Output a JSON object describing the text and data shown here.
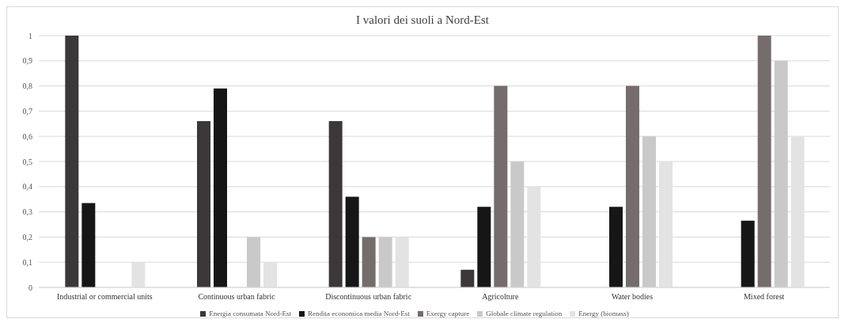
{
  "chart_data": {
    "type": "bar",
    "title": "I valori dei suoli a Nord-Est",
    "categories": [
      "Industrial or commercial units",
      "Continuous urban fabric",
      "Discontinuous urban fabric",
      "Agricolture",
      "Water bodies",
      "Mixed forest"
    ],
    "series": [
      {
        "name": "Energia consumata Nord-Est",
        "color": "#3a3838",
        "values": [
          1,
          0.66,
          0.66,
          0.07,
          null,
          null
        ]
      },
      {
        "name": "Rendita economica media Nord-Est",
        "color": "#161616",
        "values": [
          0.335,
          0.79,
          0.36,
          0.32,
          0.32,
          0.265
        ]
      },
      {
        "name": "Exergy capture",
        "color": "#756d6d",
        "values": [
          null,
          null,
          0.2,
          0.8,
          0.8,
          1
        ]
      },
      {
        "name": "Globale climate regulation",
        "color": "#c9c9c9",
        "values": [
          null,
          0.2,
          0.2,
          0.5,
          0.6,
          0.9
        ]
      },
      {
        "name": "Energy (biomass)",
        "color": "#e3e3e3",
        "values": [
          0.1,
          0.1,
          0.2,
          0.4,
          0.5,
          0.6
        ]
      }
    ],
    "ylim": [
      0,
      1
    ],
    "yticks": [
      0,
      {
        "value": 0.1,
        "label": "0,1"
      },
      {
        "value": 0.2,
        "label": "0,2"
      },
      {
        "value": 0.3,
        "label": "0,3"
      },
      {
        "value": 0.4,
        "label": "0,4"
      },
      {
        "value": 0.5,
        "label": "0,5"
      },
      {
        "value": 0.6,
        "label": "0,6"
      },
      {
        "value": 0.7,
        "label": "0,7"
      },
      {
        "value": 0.8,
        "label": "0,8"
      },
      {
        "value": 0.9,
        "label": "0,9"
      },
      1
    ],
    "grid": "y",
    "legend": "bottom"
  }
}
